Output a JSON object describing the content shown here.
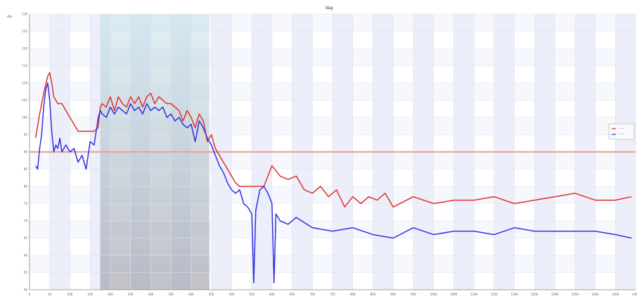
{
  "chart_data": {
    "type": "line",
    "title": "Vag",
    "ylabel": "dBu",
    "xlabel": "",
    "xlim": [
      0,
      1500
    ],
    "ylim": [
      50,
      130
    ],
    "grid": true,
    "legend_position": "right",
    "legend_entries": [
      "-- ---",
      "-- ---"
    ],
    "reference_line": {
      "y": 90,
      "color": "#f2a0a0"
    },
    "highlight_band": {
      "x_start": 175,
      "x_end": 445
    },
    "x_ticks": [
      "0",
      "50",
      "100",
      "150",
      "200",
      "250",
      "300",
      "350",
      "400",
      "450",
      "500",
      "550",
      "600",
      "650",
      "700",
      "750",
      "800",
      "850",
      "900",
      "950",
      "1000",
      "1050",
      "1100",
      "1150",
      "1200",
      "1250",
      "1300",
      "1350",
      "1400",
      "1450",
      "1500"
    ],
    "y_ticks": [
      "50",
      "55",
      "60",
      "65",
      "70",
      "75",
      "80",
      "85",
      "90",
      "95",
      "100",
      "105",
      "110",
      "115",
      "120",
      "125",
      "130"
    ],
    "series": [
      {
        "color": "#e03030",
        "x": [
          15,
          25,
          35,
          45,
          50,
          55,
          60,
          65,
          70,
          80,
          90,
          100,
          110,
          120,
          130,
          140,
          150,
          160,
          170,
          175,
          180,
          190,
          200,
          210,
          220,
          230,
          240,
          250,
          260,
          270,
          280,
          290,
          300,
          310,
          320,
          330,
          340,
          350,
          360,
          370,
          380,
          390,
          400,
          410,
          420,
          430,
          440,
          450,
          460,
          470,
          480,
          490,
          500,
          510,
          520,
          550,
          580,
          600,
          620,
          640,
          660,
          680,
          700,
          720,
          740,
          760,
          780,
          800,
          820,
          840,
          860,
          880,
          900,
          950,
          1000,
          1050,
          1100,
          1150,
          1200,
          1250,
          1300,
          1350,
          1400,
          1450,
          1490
        ],
        "y": [
          94,
          101,
          107,
          112,
          113,
          110,
          106,
          105,
          104,
          104,
          102,
          100,
          98,
          96,
          96,
          96,
          96,
          96,
          97,
          103,
          104,
          103,
          106,
          102,
          106,
          104,
          103,
          106,
          104,
          106,
          103,
          106,
          107,
          104,
          106,
          105,
          104,
          104,
          103,
          102,
          99,
          102,
          100,
          97,
          101,
          99,
          93,
          95,
          91,
          89,
          87,
          85,
          83,
          81,
          80,
          80,
          80,
          86,
          83,
          82,
          83,
          79,
          78,
          80,
          77,
          79,
          74,
          77,
          75,
          77,
          76,
          78,
          74,
          77,
          75,
          76,
          76,
          77,
          75,
          76,
          77,
          78,
          76,
          76,
          77
        ]
      },
      {
        "color": "#3030e0",
        "x": [
          15,
          20,
          25,
          30,
          35,
          40,
          45,
          50,
          55,
          60,
          65,
          70,
          75,
          80,
          90,
          100,
          110,
          120,
          130,
          140,
          150,
          160,
          170,
          175,
          180,
          190,
          200,
          210,
          220,
          230,
          240,
          250,
          260,
          270,
          280,
          290,
          300,
          310,
          320,
          330,
          340,
          350,
          360,
          370,
          380,
          390,
          400,
          410,
          420,
          430,
          440,
          450,
          460,
          470,
          480,
          490,
          500,
          510,
          520,
          530,
          540,
          550,
          555,
          560,
          570,
          580,
          590,
          600,
          605,
          610,
          620,
          640,
          660,
          700,
          750,
          800,
          850,
          900,
          950,
          1000,
          1050,
          1100,
          1150,
          1200,
          1250,
          1300,
          1350,
          1400,
          1450,
          1490
        ],
        "y": [
          86,
          85,
          91,
          95,
          103,
          108,
          110,
          105,
          96,
          90,
          92,
          91,
          94,
          90,
          92,
          90,
          91,
          87,
          89,
          85,
          93,
          92,
          100,
          102,
          101,
          100,
          103,
          101,
          103,
          102,
          101,
          104,
          102,
          103,
          101,
          104,
          102,
          103,
          102,
          103,
          100,
          101,
          99,
          100,
          98,
          97,
          98,
          93,
          99,
          97,
          94,
          92,
          89,
          86,
          84,
          81,
          79,
          78,
          79,
          75,
          74,
          72,
          52,
          73,
          79,
          80,
          78,
          75,
          52,
          72,
          70,
          69,
          71,
          68,
          67,
          68,
          66,
          65,
          68,
          66,
          67,
          67,
          66,
          68,
          67,
          67,
          67,
          67,
          66,
          65
        ]
      }
    ]
  }
}
